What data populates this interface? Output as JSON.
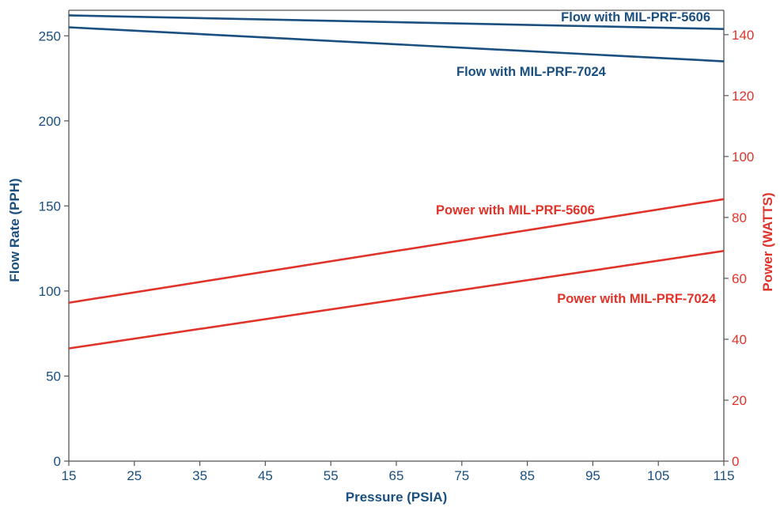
{
  "chart_data": {
    "type": "line",
    "title": "",
    "xlabel": "Pressure (PSIA)",
    "ylabel_left": "Flow Rate (PPH)",
    "ylabel_right": "Power (WATTS)",
    "x_ticks": [
      "15",
      "25",
      "35",
      "45",
      "55",
      "65",
      "75",
      "85",
      "95",
      "105",
      "115"
    ],
    "y_left_ticks": [
      "0",
      "50",
      "100",
      "150",
      "200",
      "250"
    ],
    "y_right_ticks": [
      "0",
      "20",
      "40",
      "60",
      "80",
      "100",
      "120",
      "140"
    ],
    "xlim": [
      15,
      115
    ],
    "ylim_left": [
      0,
      265
    ],
    "ylim_right": [
      0,
      148
    ],
    "grid": false,
    "colors": {
      "flow": "#1a4f7f",
      "power": "#e0332a",
      "axis": "#555555"
    },
    "series": [
      {
        "name": "Flow with MIL-PRF-5606",
        "axis": "left",
        "x": [
          15,
          115
        ],
        "y": [
          262,
          254
        ]
      },
      {
        "name": "Flow with MIL-PRF-7024",
        "axis": "left",
        "x": [
          15,
          115
        ],
        "y": [
          255,
          235
        ]
      },
      {
        "name": "Power with MIL-PRF-5606",
        "axis": "right",
        "x": [
          15,
          115
        ],
        "y": [
          52,
          86
        ]
      },
      {
        "name": "Power with MIL-PRF-7024",
        "axis": "right",
        "x": [
          15,
          115
        ],
        "y": [
          37,
          69
        ]
      }
    ]
  }
}
